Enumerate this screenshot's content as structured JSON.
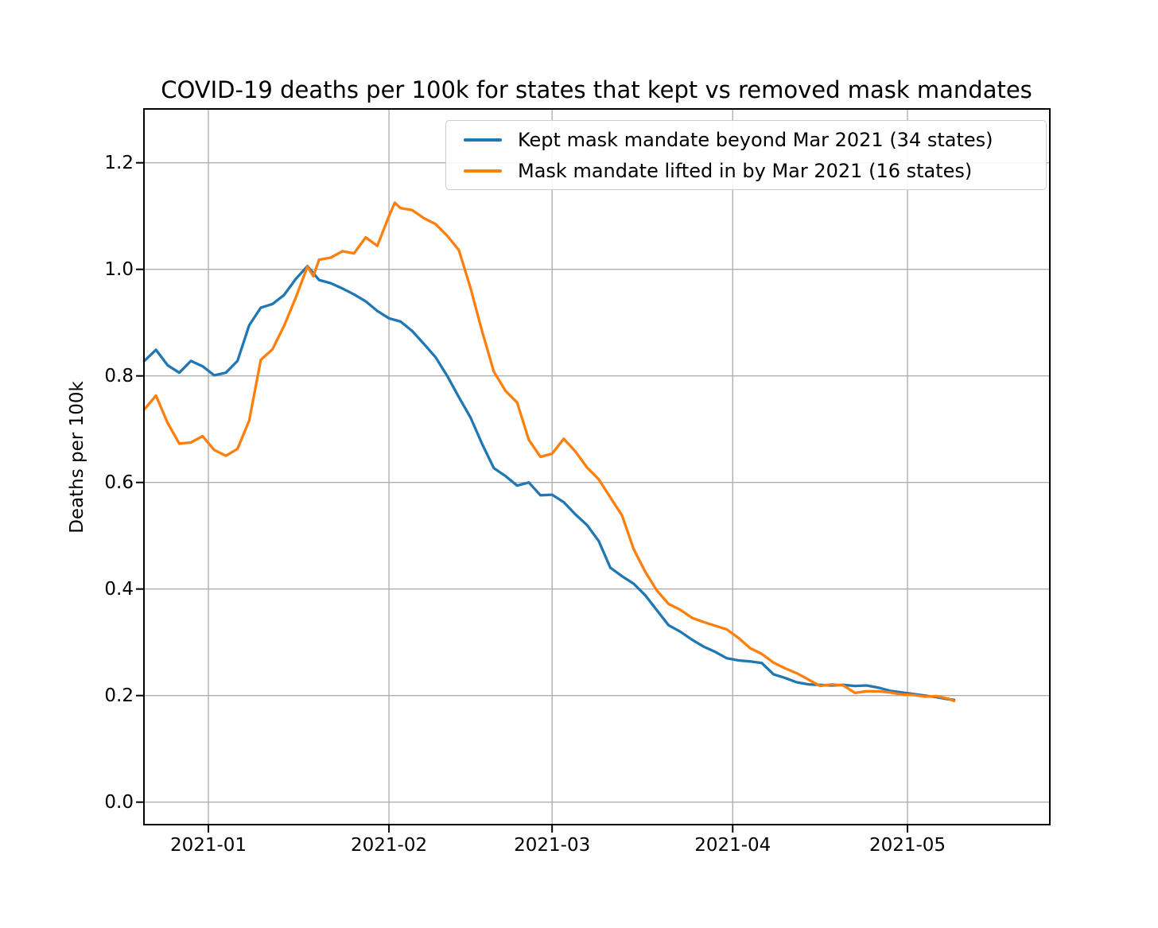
{
  "chart_data": {
    "type": "line",
    "title": "COVID-19 deaths per 100k for states that kept vs removed mask mandates",
    "xlabel": "",
    "ylabel": "Deaths per 100k",
    "grid": true,
    "legend_position": "upper right inside plot",
    "x_axis": {
      "origin": "2021-01-01",
      "range": [
        "2020-12-21",
        "2021-05-25"
      ]
    },
    "ylim": [
      -0.04,
      1.3
    ],
    "x_ticks": [
      {
        "label": "2021-01",
        "date": "2021-01-01"
      },
      {
        "label": "2021-02",
        "date": "2021-02-01"
      },
      {
        "label": "2021-03",
        "date": "2021-03-01"
      },
      {
        "label": "2021-04",
        "date": "2021-04-01"
      },
      {
        "label": "2021-05",
        "date": "2021-05-01"
      }
    ],
    "y_ticks": [
      {
        "label": "0.0",
        "value": 0.0
      },
      {
        "label": "0.2",
        "value": 0.2
      },
      {
        "label": "0.4",
        "value": 0.4
      },
      {
        "label": "0.6",
        "value": 0.6
      },
      {
        "label": "0.8",
        "value": 0.8
      },
      {
        "label": "1.0",
        "value": 1.0
      },
      {
        "label": "1.2",
        "value": 1.2
      }
    ],
    "series": [
      {
        "name": "Kept mask mandate beyond Mar 2021 (34 states)",
        "color": "#1f77b4",
        "dates": [
          "2020-12-21",
          "2020-12-23",
          "2020-12-25",
          "2020-12-27",
          "2020-12-29",
          "2020-12-31",
          "2021-01-02",
          "2021-01-04",
          "2021-01-06",
          "2021-01-08",
          "2021-01-10",
          "2021-01-12",
          "2021-01-14",
          "2021-01-16",
          "2021-01-18",
          "2021-01-20",
          "2021-01-22",
          "2021-01-24",
          "2021-01-26",
          "2021-01-28",
          "2021-01-30",
          "2021-02-01",
          "2021-02-03",
          "2021-02-05",
          "2021-02-07",
          "2021-02-09",
          "2021-02-11",
          "2021-02-13",
          "2021-02-15",
          "2021-02-17",
          "2021-02-19",
          "2021-02-21",
          "2021-02-23",
          "2021-02-25",
          "2021-02-27",
          "2021-03-01",
          "2021-03-03",
          "2021-03-05",
          "2021-03-07",
          "2021-03-09",
          "2021-03-11",
          "2021-03-13",
          "2021-03-15",
          "2021-03-17",
          "2021-03-19",
          "2021-03-21",
          "2021-03-23",
          "2021-03-25",
          "2021-03-27",
          "2021-03-29",
          "2021-03-31",
          "2021-04-02",
          "2021-04-04",
          "2021-04-06",
          "2021-04-08",
          "2021-04-10",
          "2021-04-12",
          "2021-04-14",
          "2021-04-16",
          "2021-04-18",
          "2021-04-20",
          "2021-04-22",
          "2021-04-24",
          "2021-04-26",
          "2021-04-28",
          "2021-04-30",
          "2021-05-02",
          "2021-05-04",
          "2021-05-06",
          "2021-05-08",
          "2021-05-09"
        ],
        "values": [
          0.828,
          0.849,
          0.82,
          0.806,
          0.828,
          0.818,
          0.801,
          0.806,
          0.828,
          0.895,
          0.928,
          0.935,
          0.952,
          0.982,
          1.006,
          0.98,
          0.974,
          0.964,
          0.953,
          0.94,
          0.922,
          0.908,
          0.902,
          0.884,
          0.86,
          0.835,
          0.8,
          0.76,
          0.722,
          0.672,
          0.627,
          0.612,
          0.594,
          0.6,
          0.576,
          0.577,
          0.563,
          0.54,
          0.52,
          0.49,
          0.44,
          0.424,
          0.41,
          0.388,
          0.36,
          0.332,
          0.32,
          0.305,
          0.292,
          0.282,
          0.27,
          0.266,
          0.264,
          0.261,
          0.24,
          0.233,
          0.225,
          0.221,
          0.22,
          0.219,
          0.22,
          0.218,
          0.219,
          0.215,
          0.209,
          0.206,
          0.203,
          0.2,
          0.197,
          0.193,
          0.192
        ]
      },
      {
        "name": "Mask mandate lifted in by Mar 2021 (16 states)",
        "color": "#ff7f0e",
        "dates": [
          "2020-12-21",
          "2020-12-23",
          "2020-12-25",
          "2020-12-27",
          "2020-12-29",
          "2020-12-31",
          "2021-01-02",
          "2021-01-04",
          "2021-01-06",
          "2021-01-08",
          "2021-01-10",
          "2021-01-12",
          "2021-01-14",
          "2021-01-16",
          "2021-01-18",
          "2021-01-19",
          "2021-01-20",
          "2021-01-22",
          "2021-01-24",
          "2021-01-26",
          "2021-01-28",
          "2021-01-30",
          "2021-02-01",
          "2021-02-02",
          "2021-02-03",
          "2021-02-05",
          "2021-02-07",
          "2021-02-09",
          "2021-02-11",
          "2021-02-13",
          "2021-02-15",
          "2021-02-17",
          "2021-02-19",
          "2021-02-21",
          "2021-02-23",
          "2021-02-25",
          "2021-02-27",
          "2021-03-01",
          "2021-03-03",
          "2021-03-05",
          "2021-03-07",
          "2021-03-09",
          "2021-03-11",
          "2021-03-13",
          "2021-03-15",
          "2021-03-17",
          "2021-03-19",
          "2021-03-21",
          "2021-03-23",
          "2021-03-25",
          "2021-03-27",
          "2021-03-29",
          "2021-03-31",
          "2021-04-02",
          "2021-04-04",
          "2021-04-06",
          "2021-04-08",
          "2021-04-10",
          "2021-04-12",
          "2021-04-14",
          "2021-04-16",
          "2021-04-18",
          "2021-04-20",
          "2021-04-22",
          "2021-04-24",
          "2021-04-26",
          "2021-04-28",
          "2021-04-30",
          "2021-05-02",
          "2021-05-04",
          "2021-05-06",
          "2021-05-08",
          "2021-05-09"
        ],
        "values": [
          0.737,
          0.763,
          0.712,
          0.673,
          0.675,
          0.687,
          0.661,
          0.65,
          0.663,
          0.716,
          0.83,
          0.85,
          0.894,
          0.947,
          1.005,
          0.987,
          1.018,
          1.022,
          1.034,
          1.03,
          1.06,
          1.044,
          1.1,
          1.125,
          1.115,
          1.111,
          1.096,
          1.085,
          1.063,
          1.036,
          0.965,
          0.883,
          0.808,
          0.772,
          0.75,
          0.68,
          0.648,
          0.654,
          0.682,
          0.658,
          0.628,
          0.606,
          0.572,
          0.538,
          0.475,
          0.432,
          0.397,
          0.372,
          0.361,
          0.346,
          0.338,
          0.331,
          0.324,
          0.308,
          0.289,
          0.278,
          0.262,
          0.251,
          0.242,
          0.23,
          0.218,
          0.221,
          0.219,
          0.205,
          0.208,
          0.208,
          0.206,
          0.202,
          0.201,
          0.198,
          0.199,
          0.194,
          0.19
        ]
      }
    ],
    "colors": {
      "grid": "#b0b0b0",
      "spine": "#000000",
      "background": "#ffffff",
      "legend_border": "#cccccc"
    }
  }
}
